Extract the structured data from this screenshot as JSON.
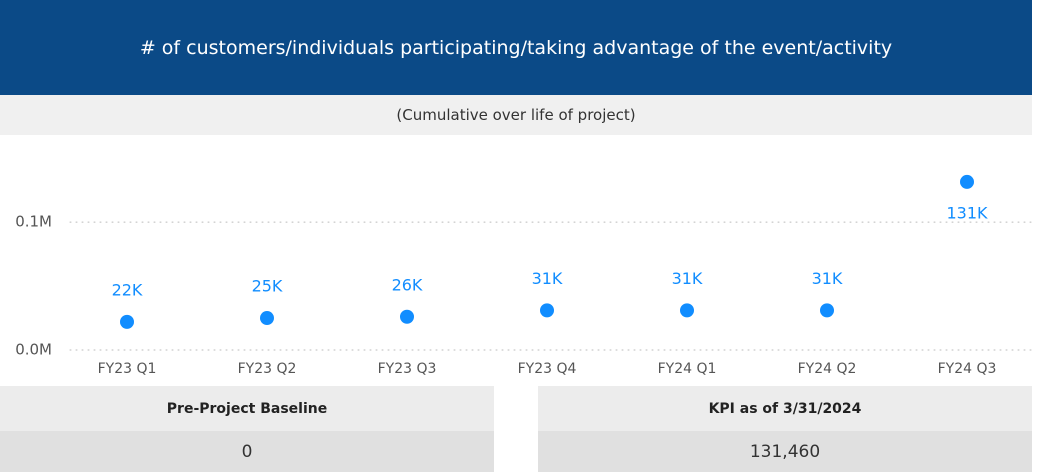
{
  "chart_data": {
    "type": "scatter",
    "title": "# of customers/individuals participating/taking advantage of the event/activity",
    "subtitle": "(Cumulative over life of project)",
    "categories": [
      "FY23 Q1",
      "FY23 Q2",
      "FY23 Q3",
      "FY23 Q4",
      "FY24 Q1",
      "FY24 Q2",
      "FY24 Q3"
    ],
    "values": [
      22000,
      25000,
      26000,
      31000,
      31000,
      31000,
      131460
    ],
    "value_labels": [
      "22K",
      "25K",
      "26K",
      "31K",
      "31K",
      "31K",
      "131K"
    ],
    "color": "#118dff",
    "ylim": [
      0,
      140000
    ],
    "yticks": [
      {
        "value": 0,
        "label": "0.0M"
      },
      {
        "value": 100000,
        "label": "0.1M"
      }
    ],
    "grid": true
  },
  "cards": [
    {
      "label": "Pre-Project Baseline",
      "value": "0"
    },
    {
      "label": "KPI as of 3/31/2024",
      "value": "131,460"
    }
  ]
}
